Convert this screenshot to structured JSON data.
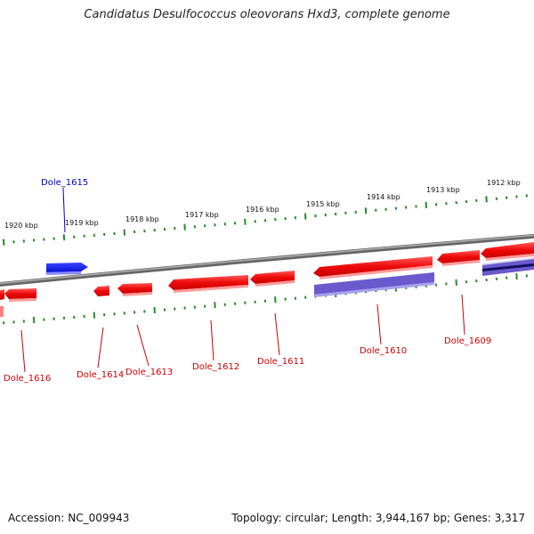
{
  "title": "Candidatus Desulfococcus oleovorans Hxd3, complete genome",
  "footer": {
    "accession": "Accession: NC_009943",
    "stats": "Topology: circular; Length: 3,944,167 bp; Genes: 3,317"
  },
  "colors": {
    "forward_gene": "#0a14e6",
    "reverse_gene": "#ee0a0a",
    "rna_band": "#6a5acd",
    "backbone": "#808080",
    "tick": "#2a8a2a",
    "reverse_label": "#cc0000",
    "forward_label": "#0000cc"
  },
  "kbp_markers": [
    {
      "label": "1920 kbp"
    },
    {
      "label": "1919 kbp"
    },
    {
      "label": "1918 kbp"
    },
    {
      "label": "1917 kbp"
    },
    {
      "label": "1916 kbp"
    },
    {
      "label": "1915 kbp"
    },
    {
      "label": "1914 kbp"
    },
    {
      "label": "1913 kbp"
    },
    {
      "label": "1912 kbp"
    }
  ],
  "genes_top": [
    {
      "name": "Dole_1615",
      "strand": "forward"
    }
  ],
  "genes_bottom": [
    {
      "name": "Dole_1616"
    },
    {
      "name": "Dole_1614"
    },
    {
      "name": "Dole_1613"
    },
    {
      "name": "Dole_1612"
    },
    {
      "name": "Dole_1611"
    },
    {
      "name": "Dole_1610"
    },
    {
      "name": "Dole_1609"
    }
  ]
}
